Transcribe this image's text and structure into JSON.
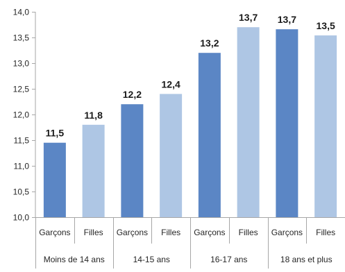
{
  "chart_data": {
    "type": "bar",
    "title": "",
    "xlabel": "",
    "ylabel": "",
    "ylim": [
      10.0,
      14.0
    ],
    "yticks": [
      "10,0",
      "10,5",
      "11,0",
      "11,5",
      "12,0",
      "12,5",
      "13,0",
      "13,5",
      "14,0"
    ],
    "ytick_values": [
      10.0,
      10.5,
      11.0,
      11.5,
      12.0,
      12.5,
      13.0,
      13.5,
      14.0
    ],
    "grid": false,
    "legend": "none",
    "colors": {
      "Garçons": "#5b86c5",
      "Filles": "#aec6e4"
    },
    "groups": [
      "Moins de 14 ans",
      "14-15 ans",
      "16-17 ans",
      "18 ans et plus"
    ],
    "subcategories": [
      "Garçons",
      "Filles"
    ],
    "bars": [
      {
        "group": "Moins de 14 ans",
        "sub": "Garçons",
        "value": 11.45,
        "label": "11,5"
      },
      {
        "group": "Moins de 14 ans",
        "sub": "Filles",
        "value": 11.8,
        "label": "11,8"
      },
      {
        "group": "14-15 ans",
        "sub": "Garçons",
        "value": 12.2,
        "label": "12,2"
      },
      {
        "group": "14-15 ans",
        "sub": "Filles",
        "value": 12.4,
        "label": "12,4"
      },
      {
        "group": "16-17 ans",
        "sub": "Garçons",
        "value": 13.2,
        "label": "13,2"
      },
      {
        "group": "16-17 ans",
        "sub": "Filles",
        "value": 13.7,
        "label": "13,7"
      },
      {
        "group": "18 ans et plus",
        "sub": "Garçons",
        "value": 13.66,
        "label": "13,7"
      },
      {
        "group": "18 ans et plus",
        "sub": "Filles",
        "value": 13.54,
        "label": "13,5"
      }
    ]
  }
}
